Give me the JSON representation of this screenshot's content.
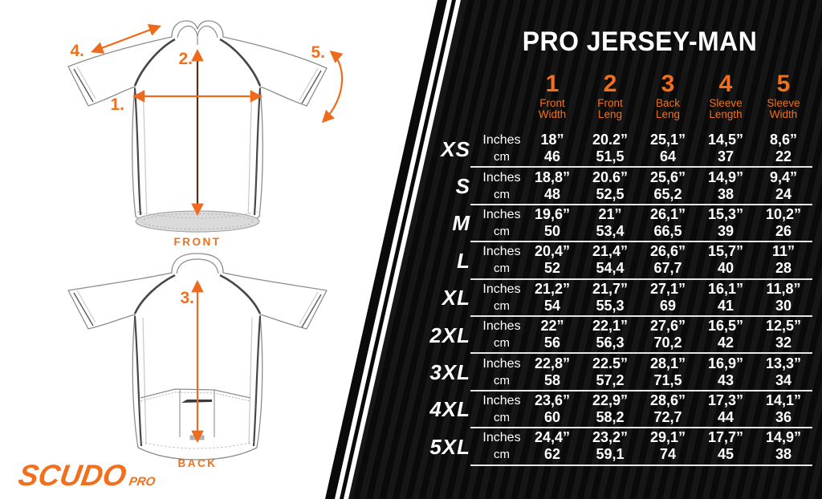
{
  "colors": {
    "accent_orange": "#f0701d",
    "panel_black": "#0a0a0a",
    "panel_stripe": "#161616",
    "divider_gray": "#e6e6e6",
    "measure_shaft_brown": "#53301a",
    "hem_gray": "#dadada"
  },
  "brand": {
    "logo_text": "SCUDO",
    "logo_suffix": "PRO"
  },
  "diagrams": {
    "front": {
      "caption": "FRONT",
      "marker_1": "1.",
      "marker_2": "2.",
      "marker_4": "4.",
      "marker_5": "5."
    },
    "back": {
      "caption": "BACK",
      "marker_3": "3."
    }
  },
  "table": {
    "title": "PRO JERSEY-MAN",
    "unit_row_labels": [
      "Inches",
      "cm"
    ],
    "columns": [
      {
        "num": "1",
        "label": [
          "Front",
          "Width"
        ]
      },
      {
        "num": "2",
        "label": [
          "Front",
          "Leng"
        ]
      },
      {
        "num": "3",
        "label": [
          "Back",
          "Leng"
        ]
      },
      {
        "num": "4",
        "label": [
          "Sleeve",
          "Length"
        ]
      },
      {
        "num": "5",
        "label": [
          "Sleeve",
          "Width"
        ]
      }
    ],
    "rows": [
      {
        "size": "XS",
        "inches": [
          "18”",
          "20.2”",
          "25,1”",
          "14,5”",
          "8,6”"
        ],
        "cm": [
          "46",
          "51,5",
          "64",
          "37",
          "22"
        ]
      },
      {
        "size": "S",
        "inches": [
          "18,8”",
          "20.6”",
          "25,6”",
          "14,9”",
          "9,4”"
        ],
        "cm": [
          "48",
          "52,5",
          "65,2",
          "38",
          "24"
        ]
      },
      {
        "size": "M",
        "inches": [
          "19,6”",
          "21”",
          "26,1”",
          "15,3”",
          "10,2”"
        ],
        "cm": [
          "50",
          "53,4",
          "66,5",
          "39",
          "26"
        ]
      },
      {
        "size": "L",
        "inches": [
          "20,4”",
          "21,4”",
          "26,6”",
          "15,7”",
          "11”"
        ],
        "cm": [
          "52",
          "54,4",
          "67,7",
          "40",
          "28"
        ]
      },
      {
        "size": "XL",
        "inches": [
          "21,2”",
          "21,7”",
          "27,1”",
          "16,1”",
          "11,8”"
        ],
        "cm": [
          "54",
          "55,3",
          "69",
          "41",
          "30"
        ]
      },
      {
        "size": "2XL",
        "inches": [
          "22”",
          "22,1”",
          "27,6”",
          "16,5”",
          "12,5”"
        ],
        "cm": [
          "56",
          "56,3",
          "70,2",
          "42",
          "32"
        ]
      },
      {
        "size": "3XL",
        "inches": [
          "22,8”",
          "22.5”",
          "28,1”",
          "16,9”",
          "13,3”"
        ],
        "cm": [
          "58",
          "57,2",
          "71,5",
          "43",
          "34"
        ]
      },
      {
        "size": "4XL",
        "inches": [
          "23,6”",
          "22,9”",
          "28,6”",
          "17,3”",
          "14,1”"
        ],
        "cm": [
          "60",
          "58,2",
          "72,7",
          "44",
          "36"
        ]
      },
      {
        "size": "5XL",
        "inches": [
          "24,4”",
          "23,2”",
          "29,1”",
          "17,7”",
          "14,9”"
        ],
        "cm": [
          "62",
          "59,1",
          "74",
          "45",
          "38"
        ]
      }
    ]
  }
}
